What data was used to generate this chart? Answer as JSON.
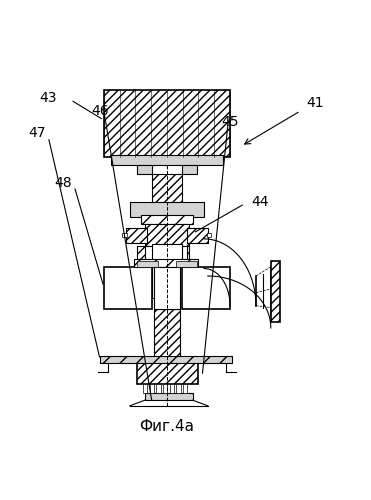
{
  "title": "Фиг.4а",
  "title_fontsize": 11,
  "background_color": "#ffffff",
  "label_fontsize": 10
}
